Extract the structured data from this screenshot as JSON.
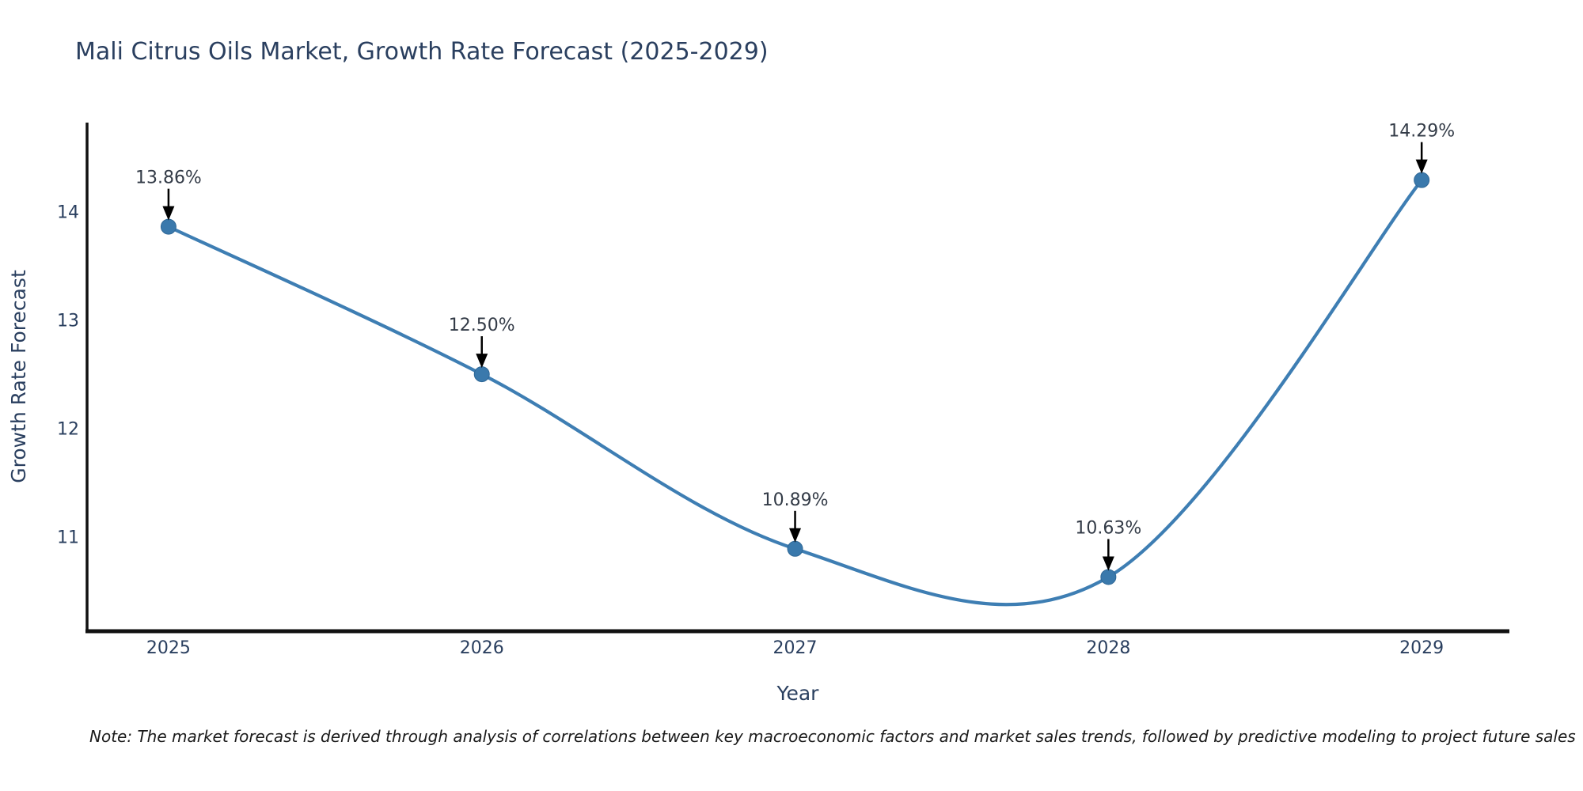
{
  "note": "Note: The market forecast is derived through analysis of correlations between key macroeconomic factors and market sales trends, followed by predictive modeling to project future sales",
  "chart_data": {
    "type": "line",
    "title": "Mali Citrus Oils Market, Growth Rate Forecast (2025-2029)",
    "xlabel": "Year",
    "ylabel": "Growth Rate Forecast",
    "categories": [
      "2025",
      "2026",
      "2027",
      "2028",
      "2029"
    ],
    "x": [
      2025,
      2026,
      2027,
      2028,
      2029
    ],
    "values": [
      13.86,
      12.5,
      10.89,
      10.63,
      14.29
    ],
    "labels": [
      "13.86%",
      "12.50%",
      "10.89%",
      "10.63%",
      "14.29%"
    ],
    "series_name": "Growth Rate Forecast",
    "line_shape": "spline",
    "yticks": [
      11,
      12,
      13,
      14
    ],
    "xlim": [
      2024.74,
      2029.28
    ],
    "ylim": [
      10.13,
      14.82
    ],
    "grid": false,
    "legend_visible": false,
    "annotations_arrow": "down-arrow",
    "colors": {
      "line": "#3e7eb3",
      "marker": "#3a79ac",
      "marker_edge": "#2f6796",
      "axis": "#111111",
      "heading_text": "#2a3f5f",
      "annotation_text": "#333b47",
      "arrow": "#000000",
      "note_text": "#1a1a1a",
      "background": "#ffffff"
    }
  }
}
